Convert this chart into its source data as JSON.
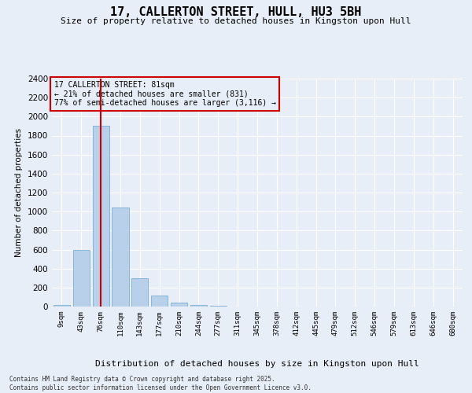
{
  "title": "17, CALLERTON STREET, HULL, HU3 5BH",
  "subtitle": "Size of property relative to detached houses in Kingston upon Hull",
  "xlabel": "Distribution of detached houses by size in Kingston upon Hull",
  "ylabel": "Number of detached properties",
  "categories": [
    "9sqm",
    "43sqm",
    "76sqm",
    "110sqm",
    "143sqm",
    "177sqm",
    "210sqm",
    "244sqm",
    "277sqm",
    "311sqm",
    "345sqm",
    "378sqm",
    "412sqm",
    "445sqm",
    "479sqm",
    "512sqm",
    "546sqm",
    "579sqm",
    "613sqm",
    "646sqm",
    "680sqm"
  ],
  "values": [
    15,
    600,
    1900,
    1040,
    295,
    120,
    38,
    20,
    5,
    0,
    0,
    0,
    0,
    0,
    0,
    0,
    0,
    0,
    0,
    0,
    0
  ],
  "bar_color": "#b8d0ea",
  "bar_edge_color": "#7aafd4",
  "vline_color": "#cc0000",
  "vline_x_index": 2,
  "annotation_title": "17 CALLERTON STREET: 81sqm",
  "annotation_line2": "← 21% of detached houses are smaller (831)",
  "annotation_line3": "77% of semi-detached houses are larger (3,116) →",
  "annotation_box_edge": "#cc0000",
  "ylim": [
    0,
    2400
  ],
  "yticks": [
    0,
    200,
    400,
    600,
    800,
    1000,
    1200,
    1400,
    1600,
    1800,
    2000,
    2200,
    2400
  ],
  "background_color": "#e8eef8",
  "grid_color": "#ffffff",
  "title_fontsize": 11,
  "subtitle_fontsize": 8,
  "footer_line1": "Contains HM Land Registry data © Crown copyright and database right 2025.",
  "footer_line2": "Contains public sector information licensed under the Open Government Licence v3.0."
}
